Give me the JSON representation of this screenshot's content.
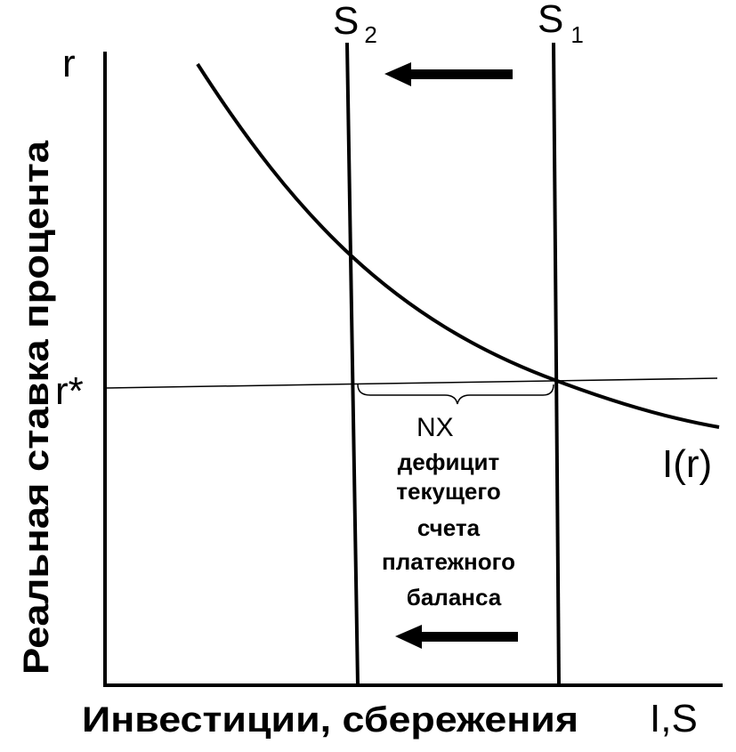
{
  "diagram": {
    "y_axis_symbol": "r",
    "x_axis_symbol": "I,S",
    "y_axis_title": "Реальная ставка процента",
    "x_axis_title": "Инвестиции, сбережения",
    "r_star_label": "r*",
    "s1_label": {
      "main": "S",
      "sub": "1"
    },
    "s2_label": {
      "main": "S",
      "sub": "2"
    },
    "curve_label": "I(r)",
    "nx_label": "NX",
    "deficit_lines": [
      "дефицит",
      "текущего",
      "счета",
      "платежного",
      "баланса"
    ]
  },
  "colors": {
    "ink": "#000000",
    "background": "#ffffff"
  }
}
